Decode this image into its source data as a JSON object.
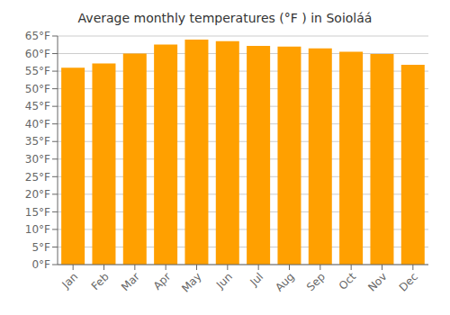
{
  "chart_data": {
    "type": "bar",
    "title": "Average monthly temperatures (°F ) in Soioláá",
    "categories": [
      "Jan",
      "Feb",
      "Mar",
      "Apr",
      "May",
      "Jun",
      "Jul",
      "Aug",
      "Sep",
      "Oct",
      "Nov",
      "Dec"
    ],
    "values": [
      56.0,
      57.2,
      60.0,
      62.6,
      64.0,
      63.5,
      62.2,
      62.0,
      61.5,
      60.5,
      59.9,
      56.8
    ],
    "color": "#FFA000",
    "ylim": [
      0,
      65
    ],
    "yticks": [
      {
        "value": 0,
        "label": "0°F"
      },
      {
        "value": 5,
        "label": "5°F"
      },
      {
        "value": 10,
        "label": "10°F"
      },
      {
        "value": 15,
        "label": "15°F"
      },
      {
        "value": 20,
        "label": "20°F"
      },
      {
        "value": 25,
        "label": "25°F"
      },
      {
        "value": 30,
        "label": "30°F"
      },
      {
        "value": 35,
        "label": "35°F"
      },
      {
        "value": 40,
        "label": "40°F"
      },
      {
        "value": 45,
        "label": "45°F"
      },
      {
        "value": 50,
        "label": "50°F"
      },
      {
        "value": 55,
        "label": "55°F"
      },
      {
        "value": 60,
        "label": "60°F"
      },
      {
        "value": 65,
        "label": "65°F"
      }
    ],
    "grid": true
  }
}
